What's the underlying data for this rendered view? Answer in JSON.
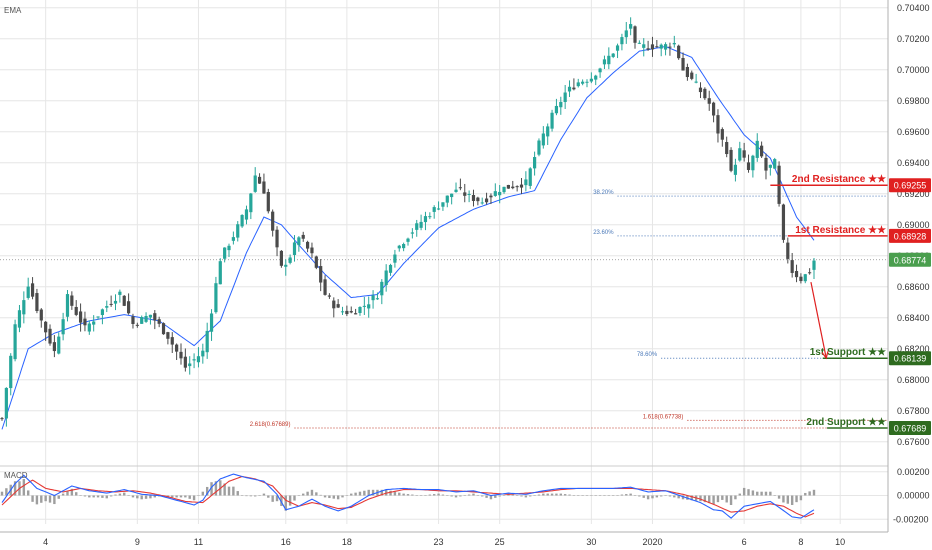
{
  "top_indicator_label": "EMA",
  "macd_label": "MACD",
  "chart_data": {
    "type": "candlestick",
    "price_axis": {
      "range": [
        0.6745,
        0.7045
      ],
      "ticks": [
        "0.70400",
        "0.70200",
        "0.70000",
        "0.69800",
        "0.69600",
        "0.69400",
        "0.69200",
        "0.69000",
        "0.68800",
        "0.68600",
        "0.68400",
        "0.68200",
        "0.68000",
        "0.67800",
        "0.67600"
      ]
    },
    "macd_axis": {
      "range": [
        -0.0024,
        0.0024
      ],
      "ticks": [
        "0.00200",
        "0.00000",
        "-0.00200"
      ]
    },
    "x_axis": {
      "range": [
        0,
        186
      ],
      "ticks": [
        {
          "label": "4",
          "x": 10
        },
        {
          "label": "9",
          "x": 31
        },
        {
          "label": "11",
          "x": 45
        },
        {
          "label": "16",
          "x": 65
        },
        {
          "label": "18",
          "x": 79
        },
        {
          "label": "23",
          "x": 100
        },
        {
          "label": "25",
          "x": 114
        },
        {
          "label": "30",
          "x": 135
        },
        {
          "label": "2020",
          "x": 149
        },
        {
          "label": "6",
          "x": 170
        },
        {
          "label": "8",
          "x": 183
        },
        {
          "label": "10",
          "x": 192
        }
      ]
    },
    "current_price": {
      "label": "0.68774",
      "value": 0.68774,
      "color": "#4a9e4e"
    },
    "price_path": [
      [
        0,
        0.6775
      ],
      [
        3,
        0.6835
      ],
      [
        6,
        0.6862
      ],
      [
        9,
        0.6838
      ],
      [
        12,
        0.6818
      ],
      [
        15,
        0.6853
      ],
      [
        19,
        0.6833
      ],
      [
        23,
        0.6845
      ],
      [
        27,
        0.6856
      ],
      [
        30,
        0.6836
      ],
      [
        34,
        0.6842
      ],
      [
        38,
        0.6828
      ],
      [
        42,
        0.6808
      ],
      [
        46,
        0.6818
      ],
      [
        48,
        0.6845
      ],
      [
        50,
        0.6878
      ],
      [
        53,
        0.6893
      ],
      [
        56,
        0.691
      ],
      [
        58,
        0.6932
      ],
      [
        60,
        0.6922
      ],
      [
        62,
        0.6895
      ],
      [
        64,
        0.6872
      ],
      [
        66,
        0.688
      ],
      [
        68,
        0.6893
      ],
      [
        71,
        0.688
      ],
      [
        74,
        0.6855
      ],
      [
        77,
        0.6845
      ],
      [
        80,
        0.6843
      ],
      [
        83,
        0.6848
      ],
      [
        86,
        0.6855
      ],
      [
        88,
        0.687
      ],
      [
        90,
        0.6883
      ],
      [
        93,
        0.6893
      ],
      [
        97,
        0.6905
      ],
      [
        101,
        0.6915
      ],
      [
        104,
        0.6923
      ],
      [
        107,
        0.6918
      ],
      [
        110,
        0.6915
      ],
      [
        114,
        0.6923
      ],
      [
        117,
        0.6925
      ],
      [
        120,
        0.6927
      ],
      [
        123,
        0.6952
      ],
      [
        126,
        0.697
      ],
      [
        129,
        0.6985
      ],
      [
        132,
        0.6992
      ],
      [
        135,
        0.6995
      ],
      [
        138,
        0.7005
      ],
      [
        141,
        0.7015
      ],
      [
        144,
        0.703
      ],
      [
        145,
        0.7015
      ],
      [
        148,
        0.7015
      ],
      [
        151,
        0.7015
      ],
      [
        154,
        0.7017
      ],
      [
        156,
        0.7
      ],
      [
        159,
        0.699
      ],
      [
        162,
        0.6978
      ],
      [
        164,
        0.696
      ],
      [
        166,
        0.6948
      ],
      [
        167,
        0.6933
      ],
      [
        169,
        0.6948
      ],
      [
        171,
        0.6935
      ],
      [
        173,
        0.6952
      ],
      [
        175,
        0.6935
      ],
      [
        177,
        0.694
      ],
      [
        178,
        0.6912
      ],
      [
        179,
        0.6888
      ],
      [
        181,
        0.687
      ],
      [
        183,
        0.6865
      ],
      [
        185,
        0.687
      ],
      [
        186,
        0.6877
      ]
    ],
    "ema_path": [
      [
        0,
        0.6768
      ],
      [
        6,
        0.682
      ],
      [
        12,
        0.683
      ],
      [
        20,
        0.6838
      ],
      [
        28,
        0.6842
      ],
      [
        36,
        0.6838
      ],
      [
        44,
        0.6822
      ],
      [
        50,
        0.6838
      ],
      [
        56,
        0.6882
      ],
      [
        60,
        0.6905
      ],
      [
        64,
        0.69
      ],
      [
        68,
        0.6887
      ],
      [
        74,
        0.6868
      ],
      [
        80,
        0.6853
      ],
      [
        86,
        0.6855
      ],
      [
        92,
        0.6875
      ],
      [
        100,
        0.6898
      ],
      [
        108,
        0.691
      ],
      [
        116,
        0.6918
      ],
      [
        122,
        0.6922
      ],
      [
        128,
        0.6955
      ],
      [
        134,
        0.6982
      ],
      [
        140,
        0.6998
      ],
      [
        146,
        0.7012
      ],
      [
        152,
        0.7015
      ],
      [
        158,
        0.7008
      ],
      [
        164,
        0.6982
      ],
      [
        170,
        0.6958
      ],
      [
        176,
        0.6943
      ],
      [
        182,
        0.6905
      ],
      [
        186,
        0.689
      ]
    ],
    "levels": [
      {
        "label": "2nd Resistance ★★",
        "value": 0.69255,
        "price_label": "0.69255",
        "color": "#e02020",
        "x_start": 176
      },
      {
        "label": "1st Resistance ★★",
        "value": 0.68928,
        "price_label": "0.68928",
        "color": "#e02020",
        "x_start": 180
      },
      {
        "label": "1st Support ★★",
        "value": 0.68139,
        "price_label": "0.68139",
        "color": "#2e6b1f",
        "x_start": 188
      },
      {
        "label": "2nd Support ★★",
        "value": 0.67689,
        "price_label": "0.67689",
        "color": "#2e6b1f",
        "x_start": 189
      }
    ],
    "fib_levels": [
      {
        "label": "38.20%",
        "value": 0.69185,
        "color": "#4a78b8",
        "x_start": 141
      },
      {
        "label": "23.60%",
        "value": 0.68928,
        "color": "#4a78b8",
        "x_start": 141
      },
      {
        "label": "78.60%",
        "value": 0.68139,
        "color": "#4a78b8",
        "x_start": 151
      },
      {
        "label": "1.618(0.67738)",
        "value": 0.67738,
        "color": "#c0392b",
        "x_start": 157
      },
      {
        "label": "2.618(0.67689)",
        "value": 0.67689,
        "color": "#c0392b",
        "x_start": 67
      }
    ],
    "projection": {
      "from": [
        185.3,
        0.6863
      ],
      "to": [
        188.8,
        0.6814
      ],
      "color": "#e02020"
    },
    "macd_line": [
      [
        0,
        -0.0006
      ],
      [
        3,
        0.001
      ],
      [
        5,
        0.0017
      ],
      [
        8,
        0.0006
      ],
      [
        12,
        0.0
      ],
      [
        16,
        0.0008
      ],
      [
        20,
        0.0004
      ],
      [
        24,
        0.0002
      ],
      [
        28,
        0.0005
      ],
      [
        32,
        0.0001
      ],
      [
        36,
        0.0
      ],
      [
        40,
        -0.0004
      ],
      [
        44,
        -0.0008
      ],
      [
        46,
        -0.0004
      ],
      [
        48,
        0.0007
      ],
      [
        50,
        0.0014
      ],
      [
        53,
        0.0018
      ],
      [
        56,
        0.0015
      ],
      [
        60,
        0.0012
      ],
      [
        63,
        0.0001
      ],
      [
        65,
        -0.0012
      ],
      [
        68,
        -0.0009
      ],
      [
        71,
        -0.0003
      ],
      [
        74,
        -0.0009
      ],
      [
        77,
        -0.0013
      ],
      [
        80,
        -0.0009
      ],
      [
        84,
        0.0
      ],
      [
        88,
        0.0005
      ],
      [
        92,
        0.0006
      ],
      [
        96,
        0.0005
      ],
      [
        100,
        0.0005
      ],
      [
        104,
        0.0003
      ],
      [
        108,
        0.0004
      ],
      [
        112,
        0.0
      ],
      [
        116,
        0.0002
      ],
      [
        120,
        0.0001
      ],
      [
        124,
        0.0004
      ],
      [
        128,
        0.0006
      ],
      [
        132,
        0.0006
      ],
      [
        136,
        0.0006
      ],
      [
        140,
        0.0006
      ],
      [
        144,
        0.0007
      ],
      [
        148,
        0.0003
      ],
      [
        152,
        0.0004
      ],
      [
        156,
        -0.0001
      ],
      [
        160,
        -0.0006
      ],
      [
        163,
        -0.0012
      ],
      [
        165,
        -0.0013
      ],
      [
        167,
        -0.0019
      ],
      [
        170,
        -0.0009
      ],
      [
        173,
        -0.0007
      ],
      [
        176,
        -0.0005
      ],
      [
        178,
        -0.001
      ],
      [
        181,
        -0.0018
      ],
      [
        183,
        -0.0019
      ],
      [
        186,
        -0.0012
      ]
    ],
    "signal_line": [
      [
        0,
        -0.0008
      ],
      [
        4,
        0.0006
      ],
      [
        7,
        0.0013
      ],
      [
        10,
        0.0006
      ],
      [
        14,
        0.0003
      ],
      [
        18,
        0.0006
      ],
      [
        22,
        0.0004
      ],
      [
        26,
        0.0003
      ],
      [
        30,
        0.0004
      ],
      [
        34,
        0.0002
      ],
      [
        38,
        -0.0001
      ],
      [
        42,
        -0.0005
      ],
      [
        46,
        -0.0006
      ],
      [
        49,
        0.0003
      ],
      [
        52,
        0.0012
      ],
      [
        55,
        0.0016
      ],
      [
        58,
        0.0014
      ],
      [
        62,
        0.0008
      ],
      [
        65,
        -0.0004
      ],
      [
        68,
        -0.0009
      ],
      [
        71,
        -0.0006
      ],
      [
        74,
        -0.0008
      ],
      [
        77,
        -0.0011
      ],
      [
        80,
        -0.001
      ],
      [
        84,
        -0.0003
      ],
      [
        88,
        0.0002
      ],
      [
        92,
        0.0005
      ],
      [
        96,
        0.0005
      ],
      [
        100,
        0.0004
      ],
      [
        104,
        0.0004
      ],
      [
        108,
        0.0003
      ],
      [
        112,
        0.0002
      ],
      [
        116,
        0.0001
      ],
      [
        120,
        0.0002
      ],
      [
        124,
        0.0003
      ],
      [
        128,
        0.0005
      ],
      [
        132,
        0.0006
      ],
      [
        136,
        0.0006
      ],
      [
        140,
        0.0006
      ],
      [
        144,
        0.0006
      ],
      [
        148,
        0.0005
      ],
      [
        152,
        0.0004
      ],
      [
        156,
        0.0001
      ],
      [
        160,
        -0.0003
      ],
      [
        164,
        -0.0009
      ],
      [
        167,
        -0.0014
      ],
      [
        170,
        -0.0013
      ],
      [
        173,
        -0.0009
      ],
      [
        176,
        -0.0007
      ],
      [
        179,
        -0.0009
      ],
      [
        182,
        -0.0015
      ],
      [
        184,
        -0.0018
      ],
      [
        186,
        -0.0015
      ]
    ],
    "colors": {
      "bull": "#26a69a",
      "bear": "#4a4a4a",
      "ema": "#2962ff",
      "macd": "#2962ff",
      "signal": "#e53935",
      "histogram": "#9e9e9e",
      "grid": "#e6e6e6",
      "axis_text": "#333333"
    }
  }
}
